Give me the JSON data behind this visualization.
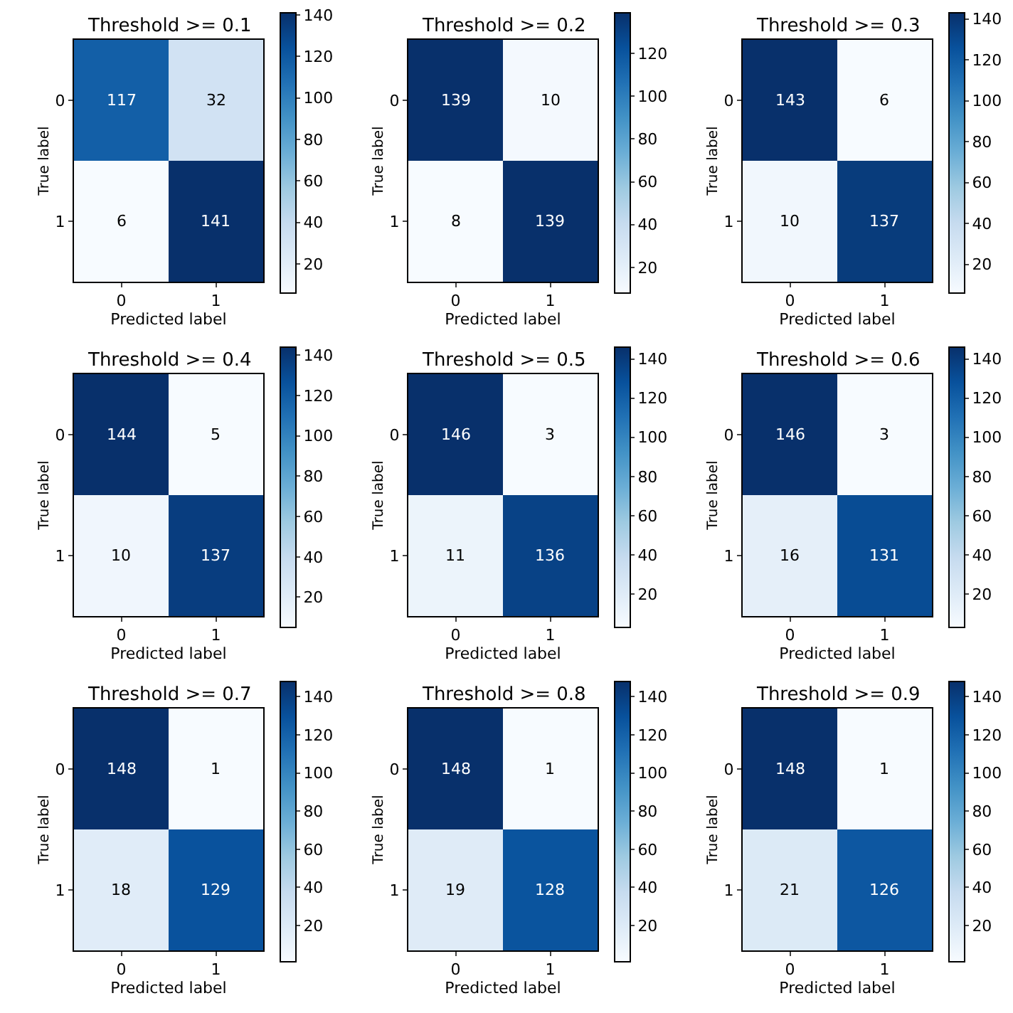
{
  "chart_data": [
    {
      "type": "heatmap",
      "title": "Threshold >= 0.1",
      "xlabel": "Predicted label",
      "ylabel": "True label",
      "categories": [
        "0",
        "1"
      ],
      "y_categories": [
        "0",
        "1"
      ],
      "cells": [
        [
          117,
          32
        ],
        [
          6,
          141
        ]
      ],
      "clim": [
        6,
        141
      ],
      "cticks": [
        20,
        40,
        60,
        80,
        100,
        120,
        140
      ],
      "data_labels": true
    },
    {
      "type": "heatmap",
      "title": "Threshold >= 0.2",
      "xlabel": "Predicted label",
      "ylabel": "True label",
      "categories": [
        "0",
        "1"
      ],
      "y_categories": [
        "0",
        "1"
      ],
      "cells": [
        [
          139,
          10
        ],
        [
          8,
          139
        ]
      ],
      "clim": [
        8,
        139
      ],
      "cticks": [
        20,
        40,
        60,
        80,
        100,
        120
      ],
      "data_labels": true
    },
    {
      "type": "heatmap",
      "title": "Threshold >= 0.3",
      "xlabel": "Predicted label",
      "ylabel": "True label",
      "categories": [
        "0",
        "1"
      ],
      "y_categories": [
        "0",
        "1"
      ],
      "cells": [
        [
          143,
          6
        ],
        [
          10,
          137
        ]
      ],
      "clim": [
        6,
        143
      ],
      "cticks": [
        20,
        40,
        60,
        80,
        100,
        120,
        140
      ],
      "data_labels": true
    },
    {
      "type": "heatmap",
      "title": "Threshold >= 0.4",
      "xlabel": "Predicted label",
      "ylabel": "True label",
      "categories": [
        "0",
        "1"
      ],
      "y_categories": [
        "0",
        "1"
      ],
      "cells": [
        [
          144,
          5
        ],
        [
          10,
          137
        ]
      ],
      "clim": [
        5,
        144
      ],
      "cticks": [
        20,
        40,
        60,
        80,
        100,
        120,
        140
      ],
      "data_labels": true
    },
    {
      "type": "heatmap",
      "title": "Threshold >= 0.5",
      "xlabel": "Predicted label",
      "ylabel": "True label",
      "categories": [
        "0",
        "1"
      ],
      "y_categories": [
        "0",
        "1"
      ],
      "cells": [
        [
          146,
          3
        ],
        [
          11,
          136
        ]
      ],
      "clim": [
        3,
        146
      ],
      "cticks": [
        20,
        40,
        60,
        80,
        100,
        120,
        140
      ],
      "data_labels": true
    },
    {
      "type": "heatmap",
      "title": "Threshold >= 0.6",
      "xlabel": "Predicted label",
      "ylabel": "True label",
      "categories": [
        "0",
        "1"
      ],
      "y_categories": [
        "0",
        "1"
      ],
      "cells": [
        [
          146,
          3
        ],
        [
          16,
          131
        ]
      ],
      "clim": [
        3,
        146
      ],
      "cticks": [
        20,
        40,
        60,
        80,
        100,
        120,
        140
      ],
      "data_labels": true
    },
    {
      "type": "heatmap",
      "title": "Threshold >= 0.7",
      "xlabel": "Predicted label",
      "ylabel": "True label",
      "categories": [
        "0",
        "1"
      ],
      "y_categories": [
        "0",
        "1"
      ],
      "cells": [
        [
          148,
          1
        ],
        [
          18,
          129
        ]
      ],
      "clim": [
        1,
        148
      ],
      "cticks": [
        20,
        40,
        60,
        80,
        100,
        120,
        140
      ],
      "data_labels": true
    },
    {
      "type": "heatmap",
      "title": "Threshold >= 0.8",
      "xlabel": "Predicted label",
      "ylabel": "True label",
      "categories": [
        "0",
        "1"
      ],
      "y_categories": [
        "0",
        "1"
      ],
      "cells": [
        [
          148,
          1
        ],
        [
          19,
          128
        ]
      ],
      "clim": [
        1,
        148
      ],
      "cticks": [
        20,
        40,
        60,
        80,
        100,
        120,
        140
      ],
      "data_labels": true
    },
    {
      "type": "heatmap",
      "title": "Threshold >= 0.9",
      "xlabel": "Predicted label",
      "ylabel": "True label",
      "categories": [
        "0",
        "1"
      ],
      "y_categories": [
        "0",
        "1"
      ],
      "cells": [
        [
          148,
          1
        ],
        [
          21,
          126
        ]
      ],
      "clim": [
        1,
        148
      ],
      "cticks": [
        20,
        40,
        60,
        80,
        100,
        120,
        140
      ],
      "data_labels": true
    }
  ]
}
